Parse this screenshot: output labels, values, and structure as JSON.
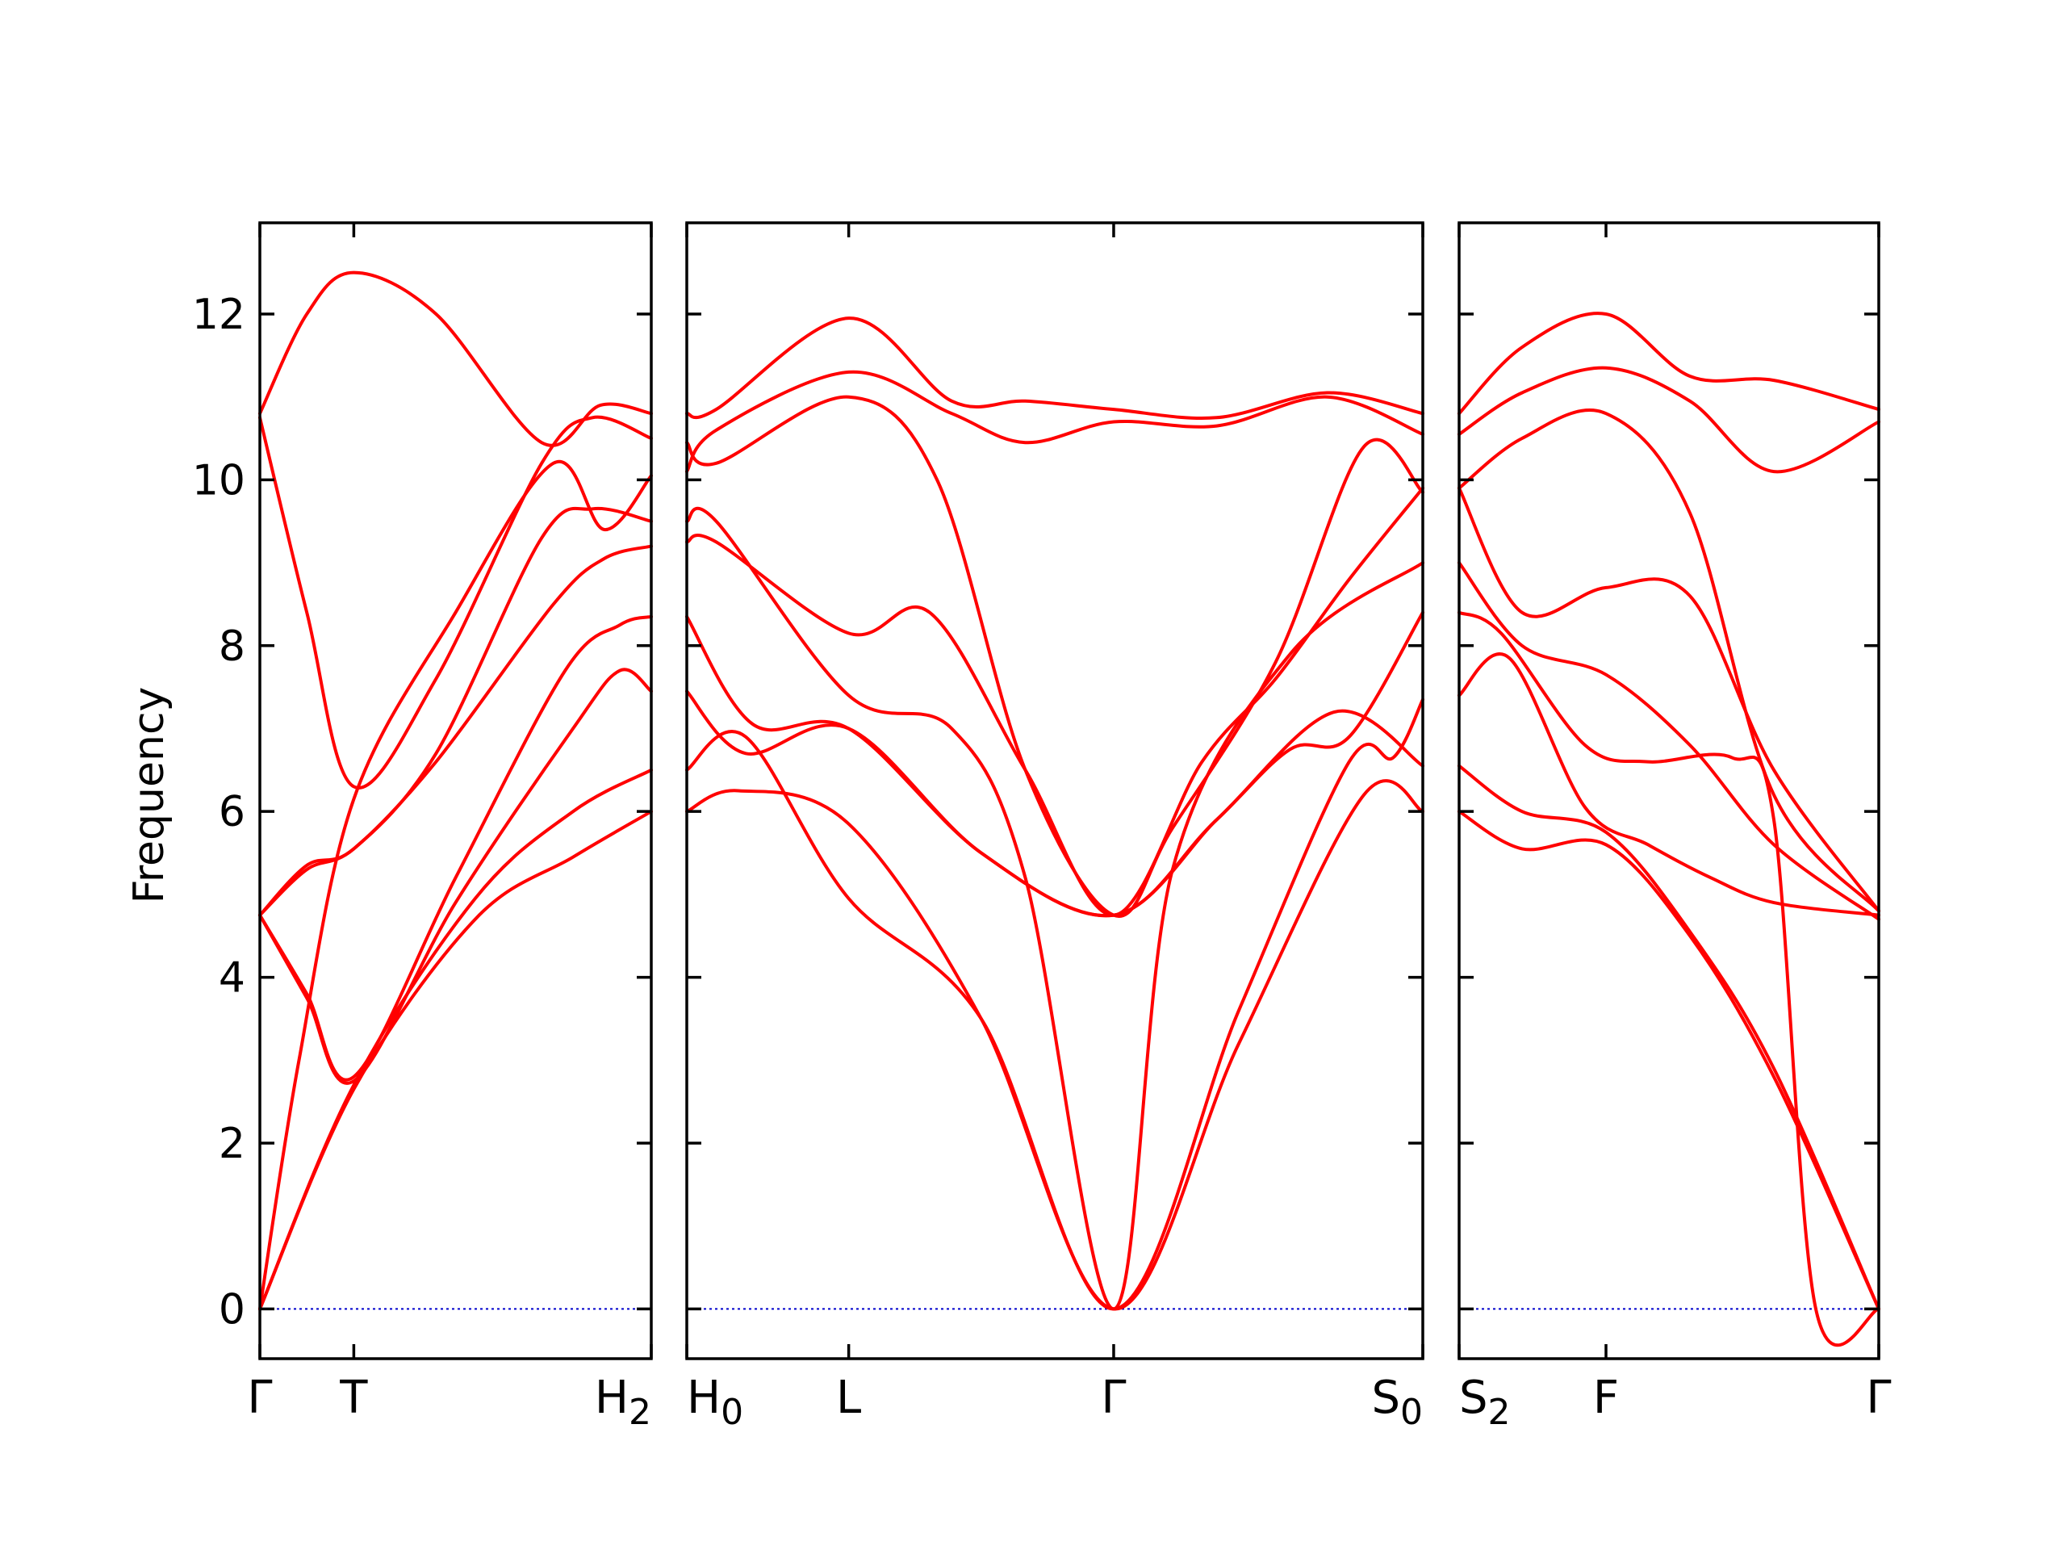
{
  "chart_data": {
    "type": "line",
    "ylabel": "Frequency",
    "ylim": [
      -0.6,
      13.1
    ],
    "yticks": [
      0,
      2,
      4,
      6,
      8,
      10,
      12
    ],
    "colors": {
      "band": "#ff0000",
      "zero_line": "#0000cc"
    },
    "grid": false,
    "legend": "none",
    "panels": [
      {
        "kpoints": [
          {
            "x": 0.0,
            "label": "Γ",
            "sub": ""
          },
          {
            "x": 0.24,
            "label": "T",
            "sub": ""
          },
          {
            "x": 1.0,
            "label": "H",
            "sub": "2"
          }
        ],
        "bands": [
          {
            "x": [
              0,
              0.24,
              0.55,
              0.8,
              1.0
            ],
            "y": [
              0,
              2.65,
              4.7,
              5.45,
              6.0
            ]
          },
          {
            "x": [
              0,
              0.24,
              0.55,
              0.8,
              1.0
            ],
            "y": [
              0,
              2.7,
              4.95,
              6.0,
              6.5
            ]
          },
          {
            "x": [
              0,
              0.12,
              0.24,
              0.5,
              0.8,
              0.92,
              1.0
            ],
            "y": [
              4.75,
              3.75,
              2.75,
              4.9,
              7.0,
              7.7,
              7.45
            ]
          },
          {
            "x": [
              0,
              0.12,
              0.24,
              0.5,
              0.78,
              0.92,
              1.0
            ],
            "y": [
              4.75,
              3.8,
              2.8,
              5.2,
              7.7,
              8.25,
              8.35
            ]
          },
          {
            "x": [
              0,
              0.1,
              0.24,
              0.5,
              0.75,
              0.88,
              1.0
            ],
            "y": [
              0,
              3.0,
              6.15,
              8.4,
              10.2,
              9.4,
              10.05
            ]
          },
          {
            "x": [
              0,
              0.12,
              0.24,
              0.45,
              0.75,
              0.88,
              1.0
            ],
            "y": [
              4.75,
              5.3,
              5.55,
              6.6,
              8.5,
              9.05,
              9.2
            ]
          },
          {
            "x": [
              0,
              0.12,
              0.24,
              0.45,
              0.72,
              0.85,
              1.0
            ],
            "y": [
              10.75,
              8.4,
              6.3,
              7.6,
              10.2,
              10.75,
              10.5
            ]
          },
          {
            "x": [
              0,
              0.12,
              0.24,
              0.45,
              0.72,
              0.85,
              1.0
            ],
            "y": [
              4.75,
              5.35,
              5.55,
              6.7,
              9.3,
              9.65,
              9.5
            ]
          },
          {
            "x": [
              0,
              0.12,
              0.24,
              0.45,
              0.72,
              0.87,
              1.0
            ],
            "y": [
              10.8,
              12.0,
              12.5,
              12.0,
              10.45,
              10.9,
              10.8
            ]
          }
        ]
      },
      {
        "kpoints": [
          {
            "x": 0.0,
            "label": "H",
            "sub": "0"
          },
          {
            "x": 0.22,
            "label": "L",
            "sub": ""
          },
          {
            "x": 0.58,
            "label": "Γ",
            "sub": ""
          },
          {
            "x": 1.0,
            "label": "S",
            "sub": "0"
          }
        ],
        "bands": [
          {
            "x": [
              0,
              0.07,
              0.22,
              0.4,
              0.58,
              0.75,
              0.92,
              1.0
            ],
            "y": [
              6.0,
              6.25,
              5.85,
              3.5,
              0,
              3.2,
              6.2,
              6.0
            ]
          },
          {
            "x": [
              0,
              0.08,
              0.22,
              0.4,
              0.58,
              0.75,
              0.9,
              0.96,
              1.0
            ],
            "y": [
              6.5,
              6.9,
              4.95,
              3.5,
              0,
              3.6,
              6.6,
              6.65,
              7.35
            ]
          },
          {
            "x": [
              0,
              0.08,
              0.22,
              0.4,
              0.58,
              0.72,
              0.88,
              1.0
            ],
            "y": [
              7.45,
              6.7,
              7.0,
              5.5,
              4.75,
              5.9,
              7.2,
              6.55
            ]
          },
          {
            "x": [
              0,
              0.09,
              0.22,
              0.4,
              0.58,
              0.72,
              0.82,
              0.9,
              1.0
            ],
            "y": [
              8.35,
              7.05,
              7.0,
              5.5,
              4.75,
              5.9,
              6.75,
              6.9,
              8.4
            ]
          },
          {
            "x": [
              0,
              0.04,
              0.22,
              0.36,
              0.46,
              0.58,
              0.66,
              0.82,
              1.0
            ],
            "y": [
              9.5,
              9.5,
              7.4,
              7.0,
              5.2,
              0,
              5.3,
              7.9,
              9.0
            ]
          },
          {
            "x": [
              0,
              0.04,
              0.22,
              0.33,
              0.46,
              0.58,
              0.7,
              0.8,
              0.9,
              1.0
            ],
            "y": [
              9.25,
              9.25,
              8.15,
              8.4,
              6.5,
              4.75,
              6.6,
              7.6,
              8.8,
              9.9
            ]
          },
          {
            "x": [
              0,
              0.04,
              0.22,
              0.34,
              0.46,
              0.58,
              0.66,
              0.8,
              0.92,
              1.0
            ],
            "y": [
              10.45,
              10.2,
              11.0,
              10.0,
              6.5,
              4.75,
              5.8,
              7.8,
              10.4,
              9.85
            ]
          },
          {
            "x": [
              0,
              0.04,
              0.22,
              0.36,
              0.46,
              0.58,
              0.72,
              0.87,
              1.0
            ],
            "y": [
              10.1,
              10.6,
              11.3,
              10.8,
              10.45,
              10.7,
              10.65,
              11.0,
              10.55
            ]
          },
          {
            "x": [
              0,
              0.04,
              0.22,
              0.36,
              0.46,
              0.58,
              0.72,
              0.87,
              1.0
            ],
            "y": [
              10.8,
              10.85,
              11.95,
              10.95,
              10.95,
              10.85,
              10.75,
              11.05,
              10.8
            ]
          }
        ]
      },
      {
        "kpoints": [
          {
            "x": 0.0,
            "label": "S",
            "sub": "2"
          },
          {
            "x": 0.35,
            "label": "F",
            "sub": ""
          },
          {
            "x": 1.0,
            "label": "Γ",
            "sub": ""
          }
        ],
        "bands": [
          {
            "x": [
              0,
              0.15,
              0.35,
              0.55,
              0.75,
              1.0
            ],
            "y": [
              6.0,
              5.55,
              5.6,
              4.5,
              2.8,
              0
            ]
          },
          {
            "x": [
              0,
              0.15,
              0.35,
              0.55,
              0.75,
              1.0
            ],
            "y": [
              6.55,
              6.0,
              5.75,
              4.55,
              2.9,
              0
            ]
          },
          {
            "x": [
              0,
              0.12,
              0.3,
              0.45,
              0.6,
              0.75,
              1.0
            ],
            "y": [
              7.4,
              7.85,
              6.05,
              5.6,
              5.2,
              4.9,
              4.75
            ]
          },
          {
            "x": [
              0,
              0.1,
              0.3,
              0.45,
              0.65,
              0.75,
              0.85,
              1.0
            ],
            "y": [
              8.4,
              8.15,
              6.8,
              6.6,
              6.65,
              5.9,
              0.0,
              0.0
            ]
          },
          {
            "x": [
              0,
              0.15,
              0.35,
              0.55,
              0.75,
              1.0
            ],
            "y": [
              9.0,
              8.0,
              7.65,
              6.8,
              5.6,
              4.7
            ]
          },
          {
            "x": [
              0,
              0.15,
              0.35,
              0.55,
              0.75,
              1.0
            ],
            "y": [
              9.9,
              8.4,
              8.7,
              8.6,
              6.5,
              4.8
            ]
          },
          {
            "x": [
              0,
              0.15,
              0.35,
              0.55,
              0.75,
              1.0
            ],
            "y": [
              9.9,
              10.5,
              10.8,
              9.6,
              6.2,
              4.8
            ]
          },
          {
            "x": [
              0,
              0.15,
              0.35,
              0.55,
              0.75,
              1.0
            ],
            "y": [
              10.55,
              11.05,
              11.35,
              10.95,
              10.1,
              10.7
            ]
          },
          {
            "x": [
              0,
              0.15,
              0.35,
              0.55,
              0.75,
              1.0
            ],
            "y": [
              10.8,
              11.6,
              12.0,
              11.25,
              11.2,
              10.85
            ]
          }
        ]
      }
    ]
  }
}
